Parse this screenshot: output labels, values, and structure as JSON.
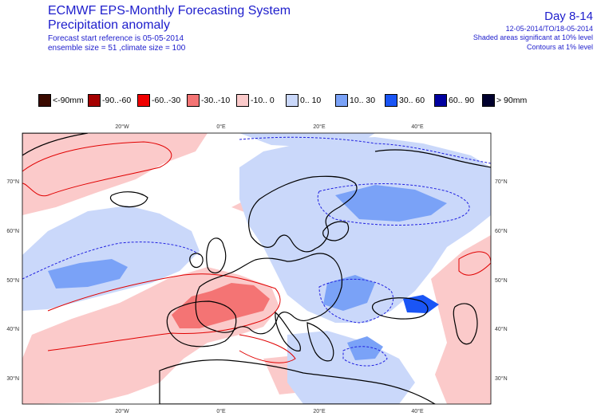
{
  "header": {
    "title_line1": "ECMWF EPS-Monthly Forecasting System",
    "title_line2": "Precipitation anomaly",
    "forecast_start": "Forecast start reference is 05-05-2014",
    "ensemble": "ensemble size = 51 ,climate size = 100"
  },
  "header_right": {
    "day_range": "Day 8-14",
    "period": "12-05-2014/TO/18-05-2014",
    "shaded_note": "Shaded areas significant at 10% level",
    "contour_note": "Contours at 1% level"
  },
  "legend": [
    {
      "label": "<-90mm",
      "color": "#3a0a00"
    },
    {
      "label": "-90..-60",
      "color": "#a50000"
    },
    {
      "label": "-60..-30",
      "color": "#f00000"
    },
    {
      "label": "-30..-10",
      "color": "#f47474"
    },
    {
      "label": "-10.. 0",
      "color": "#fbcaca"
    },
    {
      "label": "0.. 10",
      "color": "#cad8fa"
    },
    {
      "label": "10.. 30",
      "color": "#7aa2f7"
    },
    {
      "label": "30.. 60",
      "color": "#1a55f5"
    },
    {
      "label": "60.. 90",
      "color": "#0000a0"
    },
    {
      "label": "> 90mm",
      "color": "#00002e"
    }
  ],
  "map": {
    "lon_labels_top": [
      "20°W",
      "0°E",
      "20°E",
      "40°E"
    ],
    "lon_labels_bottom": [
      "20°W",
      "0°E",
      "20°E",
      "40°E"
    ],
    "lat_labels_left": [
      "70°N",
      "60°N",
      "50°N",
      "40°N",
      "30°N"
    ],
    "lat_labels_right": [
      "70°N",
      "60°N",
      "50°N",
      "40°N",
      "30°N"
    ],
    "colors": {
      "dry_light": "#fbcaca",
      "dry_mid": "#f47474",
      "dry_contour": "#e00000",
      "wet_light": "#cad8fa",
      "wet_mid": "#7aa2f7",
      "wet_strong": "#1a55f5",
      "wet_contour": "#2020e0",
      "coast": "#000000"
    }
  }
}
